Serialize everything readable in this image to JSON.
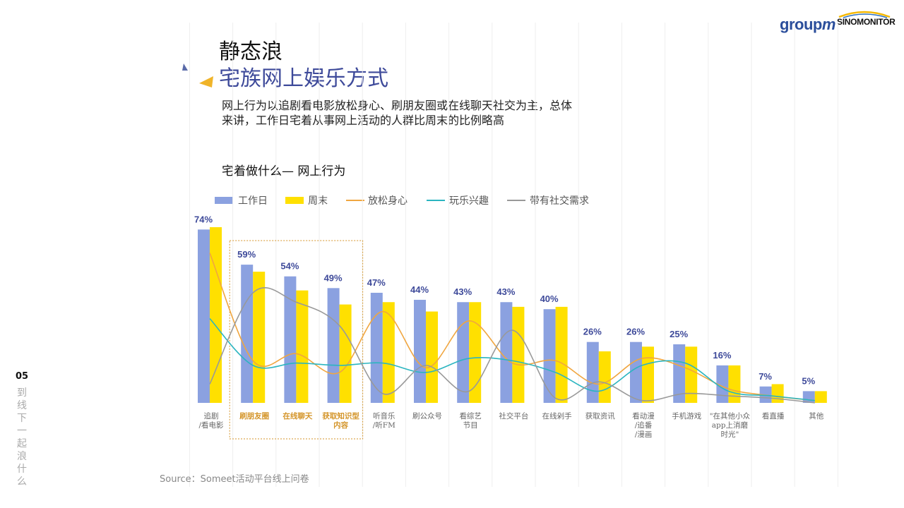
{
  "logos": {
    "groupm": "group",
    "groupm_m": "m",
    "sinomonitor": "SINOMONITOR"
  },
  "title": {
    "line1": "静态浪",
    "line2": "宅族网上娱乐方式"
  },
  "description": "网上行为以追剧看电影放松身心、刷朋友圈或在线聊天社交为主，总体来讲，工作日宅着从事网上活动的人群比周末的比例略高",
  "subheading": "宅着做什么— 网上行为",
  "page_number": "05",
  "side_text": "到线下一起浪什么",
  "source": "Source：Someet活动平台线上问卷",
  "colors": {
    "workday": "#8ba1e0",
    "weekend": "#ffe000",
    "relax": "#f0a640",
    "fun": "#2bb5c0",
    "social": "#999999",
    "highlight": "#d4952a",
    "value_label": "#3e4a9a"
  },
  "chart_data": {
    "type": "bar",
    "categories": [
      {
        "label": "追剧/看电影",
        "lines": [
          "追剧",
          "/看电影"
        ]
      },
      {
        "label": "刷朋友圈",
        "lines": [
          "刷朋友圈"
        ]
      },
      {
        "label": "在线聊天",
        "lines": [
          "在线聊天"
        ]
      },
      {
        "label": "获取知识型内容",
        "lines": [
          "获取知识型",
          "内容"
        ]
      },
      {
        "label": "听音乐/听FM",
        "lines": [
          "听音乐",
          "/听FM"
        ]
      },
      {
        "label": "刷公众号",
        "lines": [
          "刷公众号"
        ]
      },
      {
        "label": "看综艺节目",
        "lines": [
          "看综艺",
          "节目"
        ]
      },
      {
        "label": "社交平台",
        "lines": [
          "社交平台"
        ]
      },
      {
        "label": "在线剁手",
        "lines": [
          "在线剁手"
        ]
      },
      {
        "label": "获取资讯",
        "lines": [
          "获取资讯"
        ]
      },
      {
        "label": "看动漫/追番/漫画",
        "lines": [
          "看动漫",
          "/追番",
          "/漫画"
        ]
      },
      {
        "label": "手机游戏",
        "lines": [
          "手机游戏"
        ]
      },
      {
        "label": "\"在其他小众app上消磨时光\"",
        "lines": [
          "\"在其他小众",
          "app上消磨",
          "时光\""
        ]
      },
      {
        "label": "看直播",
        "lines": [
          "看直播"
        ]
      },
      {
        "label": "其他",
        "lines": [
          "其他"
        ]
      }
    ],
    "highlighted_categories": [
      1,
      2,
      3
    ],
    "value_labels": [
      "74%",
      "59%",
      "54%",
      "49%",
      "47%",
      "44%",
      "43%",
      "43%",
      "40%",
      "26%",
      "26%",
      "25%",
      "16%",
      "7%",
      "5%"
    ],
    "series": [
      {
        "name": "工作日",
        "kind": "bar",
        "values": [
          74,
          59,
          54,
          49,
          47,
          44,
          43,
          43,
          40,
          26,
          26,
          25,
          16,
          7,
          5
        ]
      },
      {
        "name": "周末",
        "kind": "bar",
        "values": [
          75,
          56,
          48,
          42,
          43,
          39,
          43,
          41,
          41,
          22,
          24,
          24,
          16,
          8,
          5
        ]
      },
      {
        "name": "放松身心",
        "kind": "line",
        "values": [
          64,
          18,
          21,
          13,
          39,
          15,
          35,
          17,
          18,
          8,
          19,
          15,
          6,
          3,
          1
        ]
      },
      {
        "name": "玩乐兴趣",
        "kind": "line",
        "values": [
          36,
          16,
          17,
          16,
          17,
          13,
          19,
          18,
          13,
          5,
          16,
          17,
          5,
          3,
          1
        ]
      },
      {
        "name": "带有社交需求",
        "kind": "line",
        "values": [
          8,
          47,
          43,
          33,
          4,
          16,
          5,
          31,
          2,
          9,
          1,
          4,
          3,
          2,
          0
        ]
      }
    ],
    "ylim": [
      0,
      80
    ],
    "legend": "top-left",
    "grid": "vertical",
    "xlabel": "",
    "ylabel": ""
  }
}
